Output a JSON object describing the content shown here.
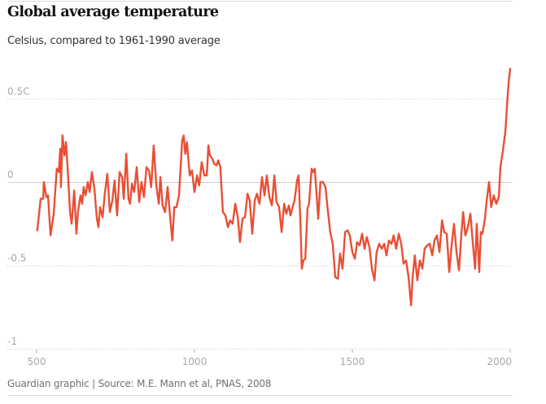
{
  "header": {
    "title": "Global average temperature",
    "subtitle": "Celsius, compared to 1961-1990 average"
  },
  "footer": {
    "source": "Guardian graphic | Source: M.E. Mann et al, PNAS, 2008"
  },
  "colors": {
    "line": "#e94f35",
    "grid": "#c8c8c8",
    "zero_line": "#d0d0d0",
    "tick_text": "#a8a8a8"
  },
  "chart_data": {
    "type": "line",
    "title": "Global average temperature",
    "subtitle": "Celsius, compared to 1961-1990 average",
    "xlabel": "",
    "ylabel": "",
    "xlim": [
      497,
      2003
    ],
    "ylim": [
      -1,
      0.75
    ],
    "x_ticks": [
      500,
      1000,
      1500,
      2000
    ],
    "x_tick_labels": [
      "500",
      "1000",
      "1500",
      "2000"
    ],
    "y_ticks": [
      0.5,
      0,
      -0.5,
      -1
    ],
    "y_tick_labels": [
      "0.5C",
      "0",
      "-0.5",
      "-1"
    ],
    "grid": true,
    "legend": "none",
    "series": [
      {
        "name": "Global average temperature anomaly",
        "x": [
          502,
          513,
          521,
          523,
          531,
          536,
          544,
          554,
          564,
          570,
          575,
          577,
          582,
          588,
          593,
          598,
          606,
          611,
          619,
          626,
          631,
          639,
          644,
          649,
          655,
          662,
          668,
          675,
          683,
          691,
          696,
          701,
          709,
          716,
          724,
          732,
          740,
          747,
          755,
          763,
          771,
          776,
          784,
          791,
          796,
          802,
          809,
          817,
          825,
          832,
          840,
          848,
          856,
          863,
          871,
          879,
          887,
          892,
          899,
          907,
          915,
          923,
          930,
          936,
          943,
          951,
          961,
          966,
          971,
          976,
          985,
          992,
          1000,
          1008,
          1015,
          1023,
          1031,
          1039,
          1044,
          1049,
          1057,
          1062,
          1070,
          1075,
          1082,
          1090,
          1098,
          1106,
          1113,
          1121,
          1129,
          1137,
          1144,
          1152,
          1160,
          1168,
          1175,
          1183,
          1191,
          1198,
          1206,
          1214,
          1222,
          1229,
          1237,
          1245,
          1253,
          1260,
          1268,
          1276,
          1284,
          1291,
          1299,
          1304,
          1312,
          1317,
          1325,
          1330,
          1335,
          1340,
          1345,
          1351,
          1358,
          1363,
          1371,
          1376,
          1381,
          1387,
          1392,
          1399,
          1407,
          1415,
          1423,
          1430,
          1438,
          1446,
          1454,
          1461,
          1469,
          1477,
          1485,
          1492,
          1500,
          1508,
          1515,
          1523,
          1531,
          1539,
          1546,
          1554,
          1562,
          1570,
          1577,
          1585,
          1593,
          1601,
          1608,
          1616,
          1624,
          1631,
          1639,
          1647,
          1655,
          1662,
          1670,
          1678,
          1686,
          1691,
          1698,
          1706,
          1714,
          1722,
          1729,
          1737,
          1745,
          1753,
          1760,
          1768,
          1776,
          1784,
          1791,
          1799,
          1807,
          1815,
          1822,
          1830,
          1838,
          1845,
          1851,
          1858,
          1866,
          1874,
          1881,
          1889,
          1894,
          1902,
          1907,
          1912,
          1920,
          1925,
          1933,
          1940,
          1948,
          1956,
          1964,
          1969,
          1977,
          1985,
          1990,
          1995,
          2000
        ],
        "values": [
          -0.29,
          -0.1,
          -0.1,
          0.0,
          -0.09,
          -0.08,
          -0.32,
          -0.19,
          0.08,
          0.06,
          0.2,
          -0.03,
          0.28,
          0.16,
          0.24,
          0.09,
          -0.18,
          -0.25,
          -0.05,
          -0.31,
          -0.18,
          -0.08,
          -0.13,
          -0.03,
          -0.08,
          0.0,
          -0.06,
          0.06,
          -0.04,
          -0.22,
          -0.27,
          -0.15,
          -0.21,
          -0.07,
          0.05,
          -0.18,
          -0.11,
          0.01,
          -0.2,
          0.06,
          0.03,
          -0.1,
          0.17,
          -0.1,
          -0.13,
          -0.01,
          -0.06,
          0.09,
          -0.12,
          0.0,
          -0.09,
          0.09,
          0.07,
          -0.03,
          0.22,
          -0.02,
          -0.13,
          0.03,
          -0.14,
          -0.18,
          -0.03,
          -0.21,
          -0.35,
          -0.15,
          -0.15,
          -0.08,
          0.25,
          0.28,
          0.17,
          0.24,
          0.04,
          0.07,
          -0.06,
          0.04,
          -0.02,
          0.12,
          0.04,
          0.04,
          0.22,
          0.16,
          0.14,
          0.11,
          0.1,
          0.13,
          0.09,
          -0.18,
          -0.2,
          -0.27,
          -0.23,
          -0.25,
          -0.13,
          -0.21,
          -0.36,
          -0.22,
          -0.21,
          -0.07,
          -0.11,
          -0.31,
          -0.11,
          -0.07,
          -0.13,
          0.03,
          -0.08,
          0.04,
          -0.09,
          -0.14,
          0.04,
          -0.12,
          -0.15,
          -0.3,
          -0.13,
          -0.19,
          -0.14,
          -0.2,
          -0.14,
          -0.11,
          0.01,
          0.04,
          -0.22,
          -0.52,
          -0.47,
          -0.46,
          -0.16,
          -0.13,
          0.08,
          0.06,
          0.08,
          -0.08,
          -0.22,
          0.0,
          0.0,
          -0.03,
          -0.18,
          -0.3,
          -0.37,
          -0.57,
          -0.58,
          -0.43,
          -0.52,
          -0.3,
          -0.29,
          -0.32,
          -0.42,
          -0.46,
          -0.36,
          -0.38,
          -0.31,
          -0.4,
          -0.33,
          -0.39,
          -0.52,
          -0.59,
          -0.42,
          -0.37,
          -0.4,
          -0.37,
          -0.44,
          -0.35,
          -0.37,
          -0.32,
          -0.4,
          -0.31,
          -0.37,
          -0.49,
          -0.47,
          -0.57,
          -0.74,
          -0.57,
          -0.44,
          -0.59,
          -0.47,
          -0.52,
          -0.4,
          -0.38,
          -0.37,
          -0.44,
          -0.35,
          -0.32,
          -0.42,
          -0.23,
          -0.3,
          -0.31,
          -0.54,
          -0.37,
          -0.25,
          -0.42,
          -0.53,
          -0.32,
          -0.18,
          -0.32,
          -0.27,
          -0.19,
          -0.35,
          -0.52,
          -0.25,
          -0.54,
          -0.3,
          -0.31,
          -0.22,
          -0.12,
          0.0,
          -0.15,
          -0.08,
          -0.13,
          -0.09,
          0.09,
          0.19,
          0.31,
          0.46,
          0.6,
          0.68
        ]
      }
    ]
  }
}
